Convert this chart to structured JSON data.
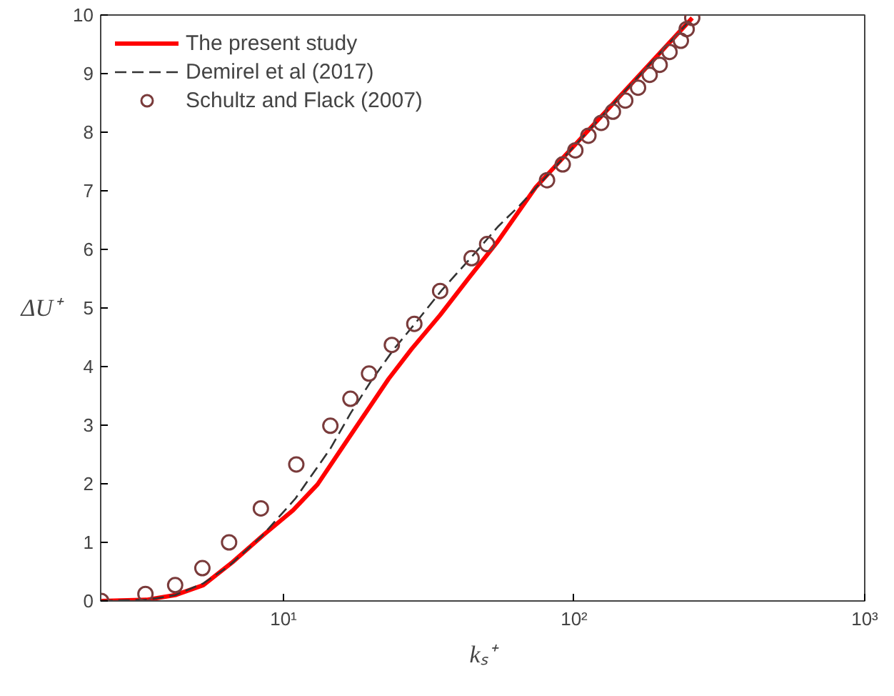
{
  "chart_data": {
    "type": "line",
    "xlabel": "kₛ⁺",
    "ylabel": "ΔU⁺",
    "log": "x",
    "xlim": [
      2.35,
      1000
    ],
    "ylim": [
      0,
      10
    ],
    "xticks": [
      {
        "value": 10,
        "label": "10¹"
      },
      {
        "value": 100,
        "label": "10²"
      },
      {
        "value": 1000,
        "label": "10³"
      }
    ],
    "yticks": [
      0,
      1,
      2,
      3,
      4,
      5,
      6,
      7,
      8,
      9,
      10
    ],
    "grid": false,
    "legend": "top left",
    "series": [
      {
        "name": "The present study",
        "line_style": "solid",
        "color": "#ff0000",
        "x": [
          2.36,
          3.38,
          4.24,
          5.3,
          6.67,
          8.6,
          10.8,
          13.1,
          15.7,
          19.0,
          23.0,
          27.6,
          34.6,
          43.4,
          54.3,
          73.8,
          255
        ],
        "values": [
          0,
          0.02,
          0.1,
          0.27,
          0.66,
          1.14,
          1.55,
          1.99,
          2.57,
          3.18,
          3.79,
          4.3,
          4.88,
          5.51,
          6.12,
          7.06,
          9.95
        ]
      },
      {
        "name": "Demirel et al (2017)",
        "line_style": "dashed",
        "color": "#333333",
        "x": [
          2.36,
          3.4,
          4.24,
          5.3,
          6.5,
          8.4,
          11,
          14.5,
          17,
          20,
          24,
          28,
          35,
          44,
          55,
          65,
          255
        ],
        "values": [
          0,
          0.02,
          0.1,
          0.3,
          0.6,
          1.1,
          1.75,
          2.6,
          3.2,
          3.75,
          4.3,
          4.7,
          5.3,
          5.85,
          6.4,
          6.75,
          9.95
        ]
      },
      {
        "name": "Schultz and Flack (2007)",
        "type": "scatter",
        "marker": "circle",
        "color": "#7a3b3b",
        "x": [
          2.36,
          3.35,
          4.24,
          5.26,
          6.5,
          8.36,
          11.07,
          14.5,
          17.0,
          19.7,
          23.6,
          28.2,
          34.6,
          44.4,
          50.2,
          80.7,
          91.4,
          101,
          112,
          124,
          136,
          150,
          166,
          182,
          197,
          213,
          233,
          244,
          255
        ],
        "values": [
          0,
          0.12,
          0.27,
          0.56,
          1.0,
          1.58,
          2.33,
          2.99,
          3.45,
          3.88,
          4.37,
          4.73,
          5.29,
          5.85,
          6.09,
          7.18,
          7.45,
          7.69,
          7.94,
          8.16,
          8.35,
          8.54,
          8.76,
          8.98,
          9.15,
          9.37,
          9.56,
          9.76,
          9.95
        ]
      }
    ]
  }
}
